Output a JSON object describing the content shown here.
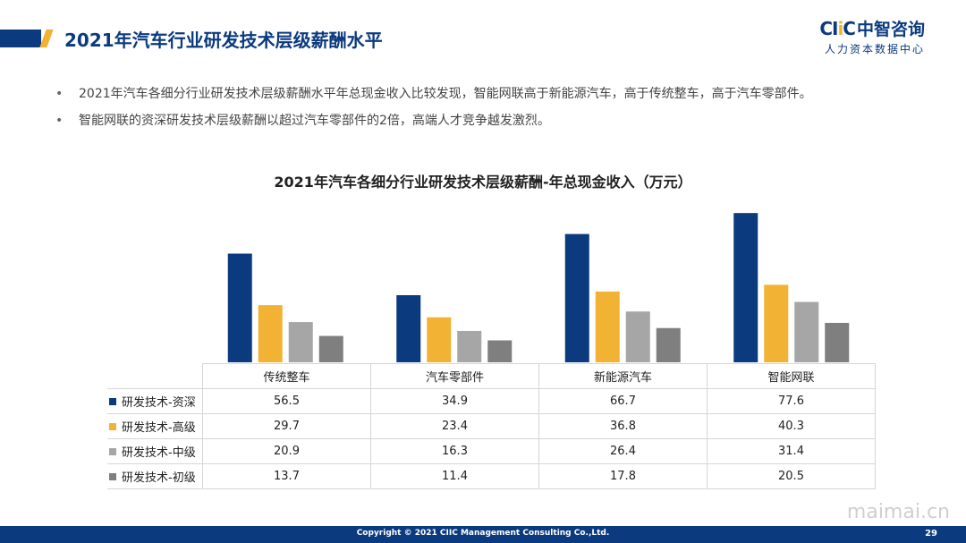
{
  "header": {
    "title": "2021年汽车行业研发技术层级薪酬水平"
  },
  "logo": {
    "mark_prefix": "CI",
    "mark_accent": "i",
    "mark_suffix": "C",
    "name": "中智咨询",
    "subtitle": "人力资本数据中心"
  },
  "bullets": [
    "2021年汽车各细分行业研发技术层级薪酬水平年总现金收入比较发现，智能网联高于新能源汽车，高于传统整车，高于汽车零部件。",
    "智能网联的资深研发技术层级薪酬以超过汽车零部件的2倍，高端人才竞争越发激烈。"
  ],
  "bullet_symbol": "•",
  "chart_data": {
    "type": "bar",
    "title": "2021年汽车各细分行业研发技术层级薪酬-年总现金收入（万元）",
    "categories": [
      "传统整车",
      "汽车零部件",
      "新能源汽车",
      "智能网联"
    ],
    "series": [
      {
        "name": "研发技术-资深",
        "color": "#0b3a7e",
        "values": [
          56.5,
          34.9,
          66.7,
          77.6
        ],
        "labels": [
          "56.5",
          "34.9",
          "66.7",
          "77.6"
        ]
      },
      {
        "name": "研发技术-高级",
        "color": "#f2b233",
        "values": [
          29.7,
          23.4,
          36.8,
          40.3
        ],
        "labels": [
          "29.7",
          "23.4",
          "36.8",
          "40.3"
        ]
      },
      {
        "name": "研发技术-中级",
        "color": "#a6a6a6",
        "values": [
          20.9,
          16.3,
          26.4,
          31.4
        ],
        "labels": [
          "20.9",
          "16.3",
          "26.4",
          "31.4"
        ]
      },
      {
        "name": "研发技术-初级",
        "color": "#7f7f7f",
        "values": [
          13.7,
          11.4,
          17.8,
          20.5
        ],
        "labels": [
          "13.7",
          "11.4",
          "17.8",
          "20.5"
        ]
      }
    ],
    "ylim": [
      0,
      80
    ],
    "grid": false,
    "legend": "data-table"
  },
  "footer": {
    "copyright": "Copyright © 2021 CIIC Management Consulting Co.,Ltd.",
    "page": "29"
  },
  "watermark": "maimai.cn"
}
